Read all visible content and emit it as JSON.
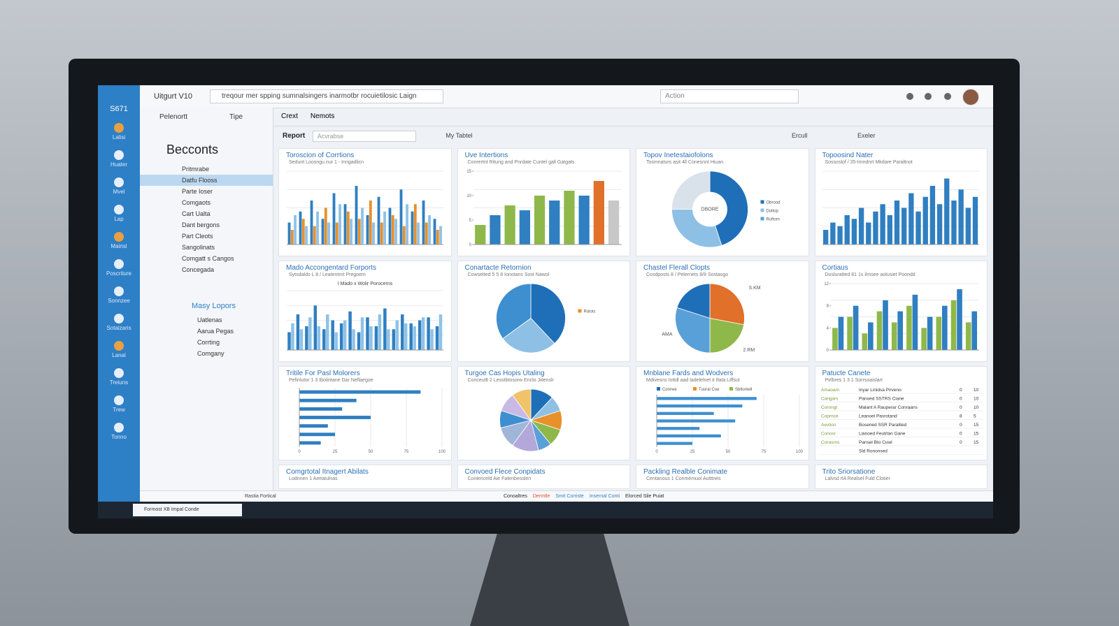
{
  "topbar": {
    "app": "Uitgurt V10",
    "search": "treqour mer spping sumnalsingers inarmotbr rocuietilosic Laign",
    "action": "Action"
  },
  "sidebar": {
    "brand": "S671",
    "items": [
      "Lalisi",
      "Huater",
      "Mvel",
      "Lap",
      "Mairisl",
      "Poscriture",
      "Sonnzee",
      "Sotaizaris",
      "Lanal",
      "Treiuns",
      "Trew",
      "Tonno"
    ]
  },
  "nav": {
    "head": [
      "Pelenortt",
      "Tipe"
    ],
    "title": "Becconts",
    "items": [
      "Pritmrabe",
      "Datfu Flooss",
      "Parte Ioser",
      "Comgaots",
      "Cart Ualta",
      "Dant bergons",
      "Part Cleots",
      "Sangolinats",
      "Comgatt s Cangos",
      "Concegada"
    ],
    "section": "Masy Lopors",
    "subitems": [
      "Uatlenas",
      "Aarua Pegas",
      "Corrting",
      "Comgany"
    ]
  },
  "tabs": [
    "Crext",
    "Nemots"
  ],
  "toolbar": {
    "report": "Report",
    "input": "Acvrabse",
    "table": "My Tabtel",
    "right": [
      "Ercull",
      "Exeler"
    ]
  },
  "panels": [
    {
      "title": "Toroscion of Corrtions",
      "subtitle": "Sedunt Loosngu nur 1 - Inngadlicn",
      "chart": {
        "type": "bar",
        "ylim": [
          0,
          100
        ],
        "series": [
          {
            "color": "#2f7fc1",
            "values": [
              30,
              45,
              60,
              35,
              70,
              55,
              80,
              40,
              65,
              50,
              75,
              45,
              60,
              35
            ]
          },
          {
            "color": "#e8902a",
            "values": [
              20,
              35,
              25,
              50,
              30,
              45,
              35,
              60,
              30,
              40,
              25,
              55,
              30,
              20
            ]
          },
          {
            "color": "#8fc3e8",
            "values": [
              40,
              25,
              45,
              30,
              55,
              35,
              50,
              30,
              45,
              35,
              55,
              30,
              40,
              25
            ]
          }
        ]
      }
    },
    {
      "title": "Uve Intertions",
      "subtitle": "Conrertnt Ritung and Pnrdate Cuntel gall Gatgats",
      "chart": {
        "type": "bar",
        "ylim": [
          0,
          15
        ],
        "yticks": [
          0,
          5,
          10,
          15
        ],
        "series": [
          {
            "colors": [
              "#8fb84a",
              "#2f7fc1",
              "#8fb84a",
              "#2f7fc1",
              "#8fb84a",
              "#2f7fc1",
              "#8fb84a",
              "#2f7fc1",
              "#e0702a",
              "#c8c8c8"
            ],
            "values": [
              4,
              6,
              8,
              7,
              10,
              9,
              11,
              10,
              13,
              9
            ]
          }
        ]
      }
    },
    {
      "title": "Topov Inetestaiofolons",
      "subtitle": "Tosmnaturs asit 4ll Conesnnt Hiuan",
      "chart": {
        "type": "donut",
        "center": "DBORE",
        "values": [
          45,
          30,
          25
        ],
        "colors": [
          "#1f6fb8",
          "#8ec0e6",
          "#d9e2ea"
        ],
        "legend": [
          {
            "name": "Obrood",
            "color": "#1f6fb8"
          },
          {
            "name": "Dultop",
            "color": "#8ec0e6"
          },
          {
            "name": "Ruftom",
            "color": "#5aa0d8"
          }
        ]
      }
    },
    {
      "title": "Topoosind Nater",
      "subtitle": "Sossoslof / 35-Imndnrt Mkdare Paraltnot",
      "chart": {
        "type": "bar",
        "ylim": [
          0,
          100
        ],
        "series": [
          {
            "color": "#2f7fc1",
            "values": [
              20,
              30,
              25,
              40,
              35,
              50,
              30,
              45,
              55,
              40,
              60,
              50,
              70,
              45,
              65,
              80,
              55,
              90,
              60,
              75,
              50,
              65
            ]
          }
        ]
      }
    },
    {
      "title": "Mado Accongentard Forports",
      "subtitle": "Sytsdaldo L 8 / Leatentrnt Pregoem",
      "chart": {
        "type": "bar",
        "note": "I Mado x Wolir Porocerns",
        "ylim": [
          0,
          100
        ],
        "series": [
          {
            "color": "#2f7fc1",
            "values": [
              30,
              60,
              40,
              75,
              35,
              50,
              45,
              65,
              30,
              55,
              40,
              70,
              35,
              60,
              45,
              50,
              55,
              40
            ]
          },
          {
            "color": "#8fc3e8",
            "values": [
              45,
              35,
              55,
              40,
              60,
              30,
              50,
              35,
              55,
              40,
              60,
              35,
              50,
              45,
              40,
              55,
              35,
              60
            ]
          }
        ]
      }
    },
    {
      "title": "Conartacte Retornion",
      "subtitle": "Cowsetted 5 5 8 Ionotans Sost Nawol",
      "chart": {
        "type": "pie",
        "values": [
          38,
          27,
          35
        ],
        "colors": [
          "#1f6fb8",
          "#8ec0e6",
          "#3d8fd0"
        ],
        "legend": [
          {
            "name": "Rolots",
            "color": "#e8902a"
          }
        ]
      }
    },
    {
      "title": "Chastel Flerall Clopts",
      "subtitle": "Cosdposts 8 / Pelernets 8/8 Sostasgo",
      "chart": {
        "type": "pie",
        "values": [
          28,
          22,
          30,
          20
        ],
        "colors": [
          "#e0702a",
          "#8fb84a",
          "#5aa0d8",
          "#1f6fb8"
        ],
        "notes": [
          "S.KM",
          "AMA",
          "2.RM"
        ]
      }
    },
    {
      "title": "Cortiaus",
      "subtitle": "Dosluratted 81 1s ilmsee aolusiet Poondd",
      "chart": {
        "type": "bar",
        "ylim": [
          0,
          12
        ],
        "yticks": [
          0,
          4,
          8,
          12
        ],
        "series": [
          {
            "color": "#8fb84a",
            "values": [
              4,
              6,
              3,
              7,
              5,
              8,
              4,
              6,
              9,
              5
            ]
          },
          {
            "color": "#2f7fc1",
            "values": [
              6,
              8,
              5,
              9,
              7,
              10,
              6,
              8,
              11,
              7
            ]
          }
        ]
      }
    },
    {
      "title": "Tritile For Pasl Molorers",
      "subtitle": "Pefinlutor 1 3 Ibolintane Dar Neflaegoe",
      "chart": {
        "type": "hbar",
        "xlim": [
          0,
          100
        ],
        "xticks": [
          0,
          25,
          50,
          75,
          100
        ],
        "color": "#2f7fc1",
        "values": [
          85,
          40,
          30,
          50,
          20,
          25,
          15
        ]
      }
    },
    {
      "title": "Turgoe Cas Hopis Utaling",
      "subtitle": "Conceutlt 2 Lesstbtosorw Enclo Jiilenslr",
      "chart": {
        "type": "pie",
        "values": [
          12,
          8,
          10,
          9,
          7,
          14,
          11,
          9,
          10,
          10
        ],
        "colors": [
          "#1f6fb8",
          "#8ec0e6",
          "#e8902a",
          "#8fb84a",
          "#5aa0d8",
          "#b3a8d9",
          "#9fb6d8",
          "#3d8fd0",
          "#c9b9e6",
          "#f0c36a"
        ]
      }
    },
    {
      "title": "Mnblane Fards and Wodvers",
      "subtitle": "Mdivesns Inttdl aad ladelelnet it Ifata Liffsut",
      "chart": {
        "type": "hbar",
        "xlim": [
          0,
          100
        ],
        "xticks": [
          0,
          25,
          50,
          75,
          100
        ],
        "color": "#3d8fd0",
        "values": [
          70,
          60,
          40,
          55,
          30,
          45,
          25
        ],
        "legend": [
          {
            "name": "Conrwe",
            "color": "#1f6fb8"
          },
          {
            "name": "Tuoral Coe",
            "color": "#e8902a"
          },
          {
            "name": "Sbltoniell",
            "color": "#8fb84a"
          }
        ]
      }
    },
    {
      "title": "Patucte Canete",
      "subtitle": "Pirlbres 1 3 1 Sorrsoaislart",
      "chart": {
        "type": "table",
        "rows": [
          [
            "Amaoarn",
            "Inyar Linidsa Pirveno",
            "0",
            "10"
          ],
          [
            "Carigars",
            "Panoed SSTRS Ciane",
            "0",
            "10"
          ],
          [
            "Corongt",
            "Malant A Rauperar Conraans",
            "0",
            "10"
          ],
          [
            "Coprnce",
            "Leanoel Pasrotand",
            "8",
            "5"
          ],
          [
            "Aevlion",
            "Bosened SSR Paralited",
            "0",
            "15"
          ],
          [
            "Conosr",
            "Lianoed Feutrlan Gane",
            "0",
            "15"
          ],
          [
            "Corasros",
            "Pansel Bto Cuwl",
            "0",
            "15"
          ],
          [
            "",
            "Sld Rononsed",
            "",
            ""
          ]
        ]
      }
    },
    {
      "title": "Comgrtotal Itnagert Abilats",
      "subtitle": "Lodnnen 1 Aeeatulnas"
    },
    {
      "title": "Convoed Flece Conpidats",
      "subtitle": "Conlenceld Aie Fatenbesslen"
    },
    {
      "title": "Packling Realble Conimate",
      "subtitle": "Centanous 1 Conmemuol Autttnes"
    },
    {
      "title": "Trito Sriorsatione",
      "subtitle": "Lalvsd rlA Realsel Fuld Clotier"
    }
  ],
  "status": {
    "left": "Rastia Fortical",
    "legend": [
      "Conoaltres",
      "Dermtle",
      "Smit Corriste",
      "Insernal Conti",
      "Elorced Sile Puiat"
    ]
  },
  "taskbar": {
    "button": "Formost XB Impal Conde"
  }
}
